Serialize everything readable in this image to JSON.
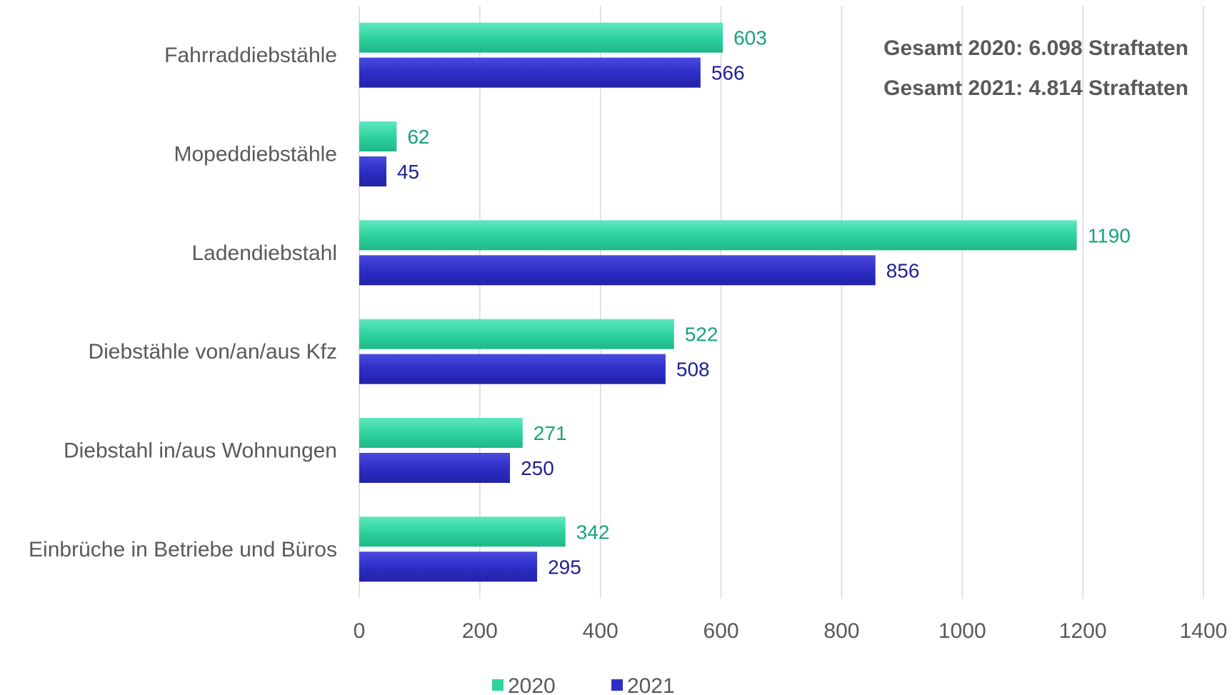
{
  "chart_data": {
    "type": "bar",
    "orientation": "horizontal",
    "categories": [
      "Fahrraddiebstähle",
      "Mopeddiebstähle",
      "Ladendiebstahl",
      "Diebstähle von/an/aus Kfz",
      "Diebstahl in/aus Wohnungen",
      "Einbrüche in Betriebe und Büros"
    ],
    "series": [
      {
        "name": "2020",
        "color": "#2ed3a0",
        "values": [
          603,
          62,
          1190,
          522,
          271,
          342
        ]
      },
      {
        "name": "2021",
        "color": "#2e2ec8",
        "values": [
          566,
          45,
          856,
          508,
          250,
          295
        ]
      }
    ],
    "xlim": [
      0,
      1400
    ],
    "xticks": [
      "0",
      "200",
      "400",
      "600",
      "800",
      "1000",
      "1200",
      "1400"
    ],
    "grid": "vertical",
    "legend_position": "bottom",
    "annotations": [
      "Gesamt 2020: 6.098 Straftaten",
      "Gesamt 2021: 4.814 Straftaten"
    ],
    "data_label_colors": {
      "2020": "#17a37a",
      "2021": "#1f1f8f"
    }
  }
}
